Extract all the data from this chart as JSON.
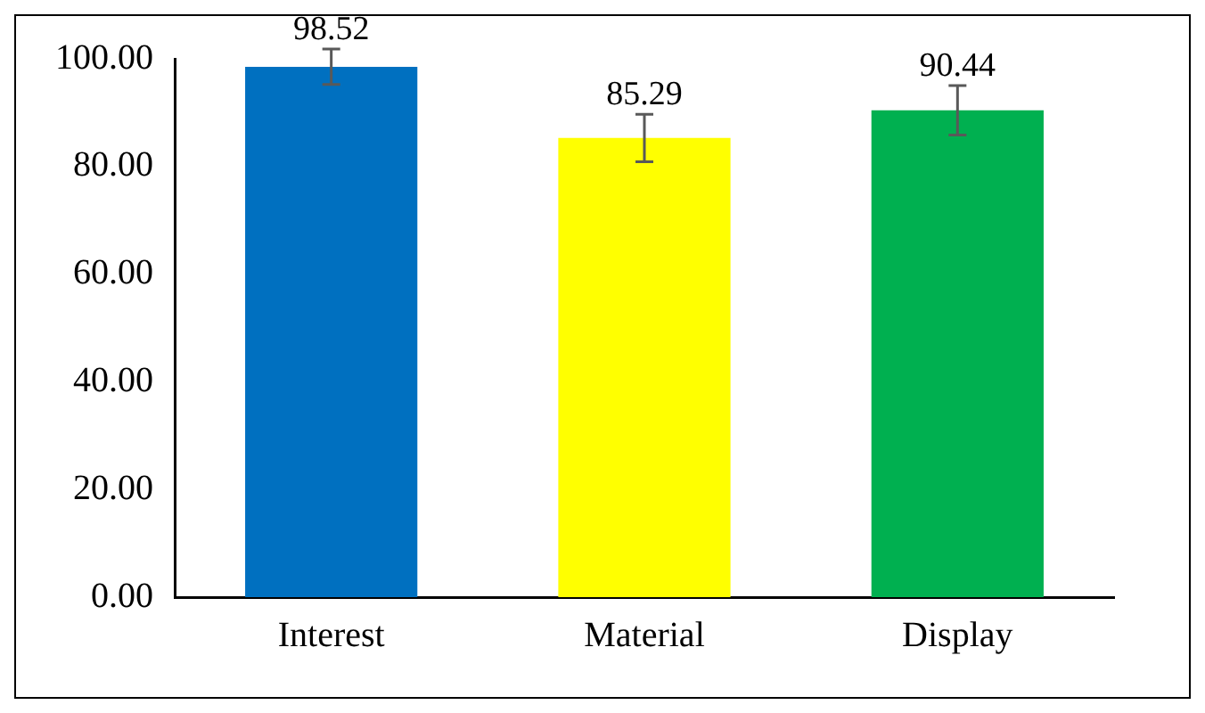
{
  "chart_data": {
    "type": "bar",
    "categories": [
      "Interest",
      "Material",
      "Display"
    ],
    "values": [
      98.52,
      85.29,
      90.44
    ],
    "colors": [
      "#0070c0",
      "#ffff00",
      "#00b050"
    ],
    "errors": [
      3.3,
      4.4,
      4.6
    ],
    "ylim": [
      0,
      100
    ],
    "yticks": [
      {
        "value": 0,
        "label": "0.00"
      },
      {
        "value": 20,
        "label": "20.00"
      },
      {
        "value": 40,
        "label": "40.00"
      },
      {
        "value": 60,
        "label": "60.00"
      },
      {
        "value": 80,
        "label": "80.00"
      },
      {
        "value": 100,
        "label": "100.00"
      }
    ],
    "grid": false,
    "legend": false,
    "data_labels": true
  }
}
